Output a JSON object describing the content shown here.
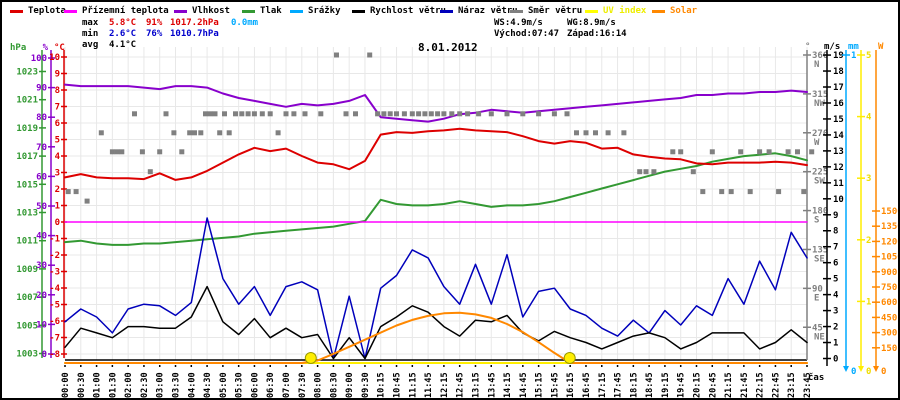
{
  "legend": [
    {
      "label": "Teplota",
      "color": "#dd0000"
    },
    {
      "label": "Přízemní teplota",
      "color": "#ff00ff"
    },
    {
      "label": "Vlhkost",
      "color": "#8800cc"
    },
    {
      "label": "Tlak",
      "color": "#339933"
    },
    {
      "label": "Srážky",
      "color": "#00aaff"
    },
    {
      "label": "Rychlost větru",
      "color": "#000000"
    },
    {
      "label": "Náraz větru",
      "color": "#0000bb"
    },
    {
      "label": "Směr větru",
      "color": "#808080"
    },
    {
      "label": "UV index",
      "color": "#ffff00"
    },
    {
      "label": "Solar",
      "color": "#ff8800"
    }
  ],
  "stats": {
    "max_label": "max",
    "max_temp": "5.8°C",
    "max_hum": "91%",
    "max_pres": "1017.2hPa",
    "max_rain": "0.0mm",
    "min_label": "min",
    "min_temp": "2.6°C",
    "min_hum": "76%",
    "min_pres": "1010.7hPa",
    "avg_label": "avg",
    "avg_temp": "4.1°C",
    "ws": "WS:4.9m/s",
    "wg": "WG:8.9m/s",
    "sunrise": "Východ:07:47",
    "sunset": "Západ:16:14"
  },
  "title": "8.01.2012",
  "xlabel": "čas",
  "chart_data": {
    "type": "line",
    "title": "8.01.2012",
    "x_labels": [
      "00:00",
      "00:30",
      "01:00",
      "01:30",
      "02:00",
      "02:30",
      "03:00",
      "03:30",
      "04:00",
      "04:30",
      "05:00",
      "05:30",
      "06:00",
      "06:30",
      "07:00",
      "07:30",
      "08:00",
      "08:30",
      "09:00",
      "09:30",
      "10:15",
      "10:45",
      "11:15",
      "11:45",
      "12:15",
      "12:45",
      "13:15",
      "13:45",
      "14:15",
      "14:45",
      "15:15",
      "15:45",
      "16:15",
      "16:45",
      "17:15",
      "17:45",
      "18:15",
      "18:45",
      "19:15",
      "19:45",
      "20:15",
      "20:45",
      "21:15",
      "21:45",
      "22:15",
      "22:45",
      "23:15",
      "23:45"
    ],
    "y_axes_left": [
      {
        "name": "hPa",
        "color": "#339933",
        "range": [
          1003,
          1023
        ],
        "ticks": [
          1023,
          1021,
          1019,
          1017,
          1015,
          1013,
          1011,
          1009,
          1007,
          1005,
          1003
        ]
      },
      {
        "name": "%",
        "color": "#8800cc",
        "range": [
          0,
          100
        ],
        "ticks": [
          100,
          90,
          80,
          70,
          60,
          50,
          40,
          30,
          20,
          10,
          0
        ]
      },
      {
        "name": "°C",
        "color": "#dd0000",
        "range": [
          -8,
          10
        ],
        "ticks": [
          10,
          9,
          8,
          7,
          6,
          5,
          4,
          3,
          2,
          1,
          0,
          -1,
          -2,
          -3,
          -4,
          -5,
          -6,
          -7,
          -8
        ]
      }
    ],
    "y_axes_right": [
      {
        "name": "°",
        "color": "#808080",
        "range": [
          45,
          360
        ],
        "ticks": [
          360,
          315,
          270,
          225,
          180,
          135,
          90,
          45
        ],
        "tick_letters": [
          "N",
          "NW",
          "W",
          "SW",
          "S",
          "SE",
          "E",
          "NE"
        ]
      },
      {
        "name": "m/s",
        "color": "#000000",
        "range": [
          0,
          19
        ],
        "ticks": [
          19,
          18,
          17,
          16,
          15,
          14,
          13,
          12,
          11,
          10,
          9,
          8,
          7,
          6,
          5,
          4,
          3,
          2,
          1,
          0
        ]
      },
      {
        "name": "mm",
        "color": "#00aaff",
        "range": [
          0,
          1
        ],
        "ticks": [
          1,
          0
        ]
      },
      {
        "name": "UV",
        "color": "#ffee00",
        "range": [
          0,
          5
        ],
        "ticks": [
          5,
          4,
          3,
          2,
          1,
          0
        ]
      },
      {
        "name": "W",
        "color": "#ff8800",
        "range": [
          0,
          1500
        ],
        "ticks": [
          1500,
          1350,
          1200,
          1050,
          900,
          750,
          600,
          450,
          300,
          150,
          0
        ]
      }
    ],
    "series": [
      {
        "name": "Teplota",
        "color": "#dd0000",
        "axis": "temp",
        "width": 2,
        "values": [
          2.7,
          2.9,
          2.7,
          2.65,
          2.65,
          2.6,
          2.95,
          2.55,
          2.7,
          3.1,
          3.6,
          4.1,
          4.5,
          4.3,
          4.45,
          4.0,
          3.6,
          3.5,
          3.2,
          3.7,
          5.3,
          5.45,
          5.4,
          5.5,
          5.55,
          5.65,
          5.55,
          5.5,
          5.45,
          5.2,
          4.9,
          4.75,
          4.9,
          4.8,
          4.45,
          4.5,
          4.1,
          3.95,
          3.85,
          3.8,
          3.55,
          3.5,
          3.6,
          3.6,
          3.6,
          3.65,
          3.6,
          3.45
        ]
      },
      {
        "name": "Přízemní teplota",
        "color": "#ff00ff",
        "axis": "temp",
        "width": 1.5,
        "values": [
          0,
          0,
          0,
          0,
          0,
          0,
          0,
          0,
          0,
          0,
          0,
          0,
          0,
          0,
          0,
          0,
          0,
          0,
          0,
          0,
          0,
          0,
          0,
          0,
          0,
          0,
          0,
          0,
          0,
          0,
          0,
          0,
          0,
          0,
          0,
          0,
          0,
          0,
          0,
          0,
          0,
          0,
          0,
          0,
          0,
          0,
          0,
          0
        ]
      },
      {
        "name": "Vlhkost",
        "color": "#8800cc",
        "axis": "hum",
        "width": 2,
        "values": [
          91,
          90.5,
          90.5,
          90.5,
          90.5,
          90,
          89.5,
          90.5,
          90.5,
          90,
          88,
          86.5,
          85.5,
          84.5,
          83.5,
          84.5,
          84,
          84.5,
          85.5,
          87.5,
          80,
          79.5,
          79,
          78.5,
          79.5,
          81,
          81.5,
          82.5,
          82,
          81.5,
          82,
          82.5,
          83,
          83.5,
          84,
          84.5,
          85,
          85.5,
          86,
          86.5,
          87.5,
          87.5,
          88,
          88,
          88.5,
          88.5,
          89,
          88.5
        ]
      },
      {
        "name": "Tlak",
        "color": "#339933",
        "axis": "pres",
        "width": 2,
        "values": [
          1010.9,
          1011.0,
          1010.8,
          1010.7,
          1010.7,
          1010.8,
          1010.8,
          1010.9,
          1011.0,
          1011.1,
          1011.2,
          1011.3,
          1011.5,
          1011.6,
          1011.7,
          1011.8,
          1011.9,
          1012.0,
          1012.2,
          1012.4,
          1013.9,
          1013.6,
          1013.5,
          1013.5,
          1013.6,
          1013.8,
          1013.6,
          1013.4,
          1013.5,
          1013.5,
          1013.6,
          1013.8,
          1014.1,
          1014.4,
          1014.7,
          1015.0,
          1015.3,
          1015.6,
          1015.9,
          1016.1,
          1016.3,
          1016.6,
          1016.8,
          1017.0,
          1017.1,
          1017.2,
          1017.0,
          1016.7
        ]
      },
      {
        "name": "Srážky",
        "color": "#00aaff",
        "axis": "mm",
        "width": 1.5,
        "values": [
          0,
          0,
          0,
          0,
          0,
          0,
          0,
          0,
          0,
          0,
          0,
          0,
          0,
          0,
          0,
          0,
          0,
          0,
          0,
          0,
          0,
          0,
          0,
          0,
          0,
          0,
          0,
          0,
          0,
          0,
          0,
          0,
          0,
          0,
          0,
          0,
          0,
          0,
          0,
          0,
          0,
          0,
          0,
          0,
          0,
          0,
          0,
          0
        ]
      },
      {
        "name": "Rychlost větru",
        "color": "#000000",
        "axis": "wind",
        "width": 1.5,
        "values": [
          0.7,
          1.9,
          1.6,
          1.3,
          2.0,
          2.0,
          1.9,
          1.9,
          2.6,
          4.5,
          2.3,
          1.5,
          2.5,
          1.3,
          1.9,
          1.3,
          1.5,
          0.0,
          1.3,
          0.0,
          2.0,
          2.6,
          3.3,
          2.9,
          2.0,
          1.4,
          2.4,
          2.3,
          2.7,
          1.6,
          1.1,
          1.7,
          1.3,
          1.0,
          0.6,
          1.0,
          1.4,
          1.6,
          1.3,
          0.6,
          1.0,
          1.6,
          1.6,
          1.6,
          0.6,
          1.0,
          1.8,
          1.0
        ]
      },
      {
        "name": "Náraz větru",
        "color": "#0000bb",
        "axis": "wind",
        "width": 1.5,
        "values": [
          2.3,
          3.1,
          2.6,
          1.6,
          3.1,
          3.4,
          3.3,
          2.7,
          3.5,
          8.8,
          5.0,
          3.4,
          4.5,
          2.7,
          4.5,
          4.8,
          4.3,
          0.0,
          3.9,
          0.0,
          4.4,
          5.2,
          6.8,
          6.3,
          4.5,
          3.4,
          5.9,
          3.4,
          6.5,
          2.6,
          4.2,
          4.4,
          3.1,
          2.7,
          1.9,
          1.4,
          2.4,
          1.6,
          3.0,
          2.1,
          3.3,
          2.7,
          5.0,
          3.4,
          6.1,
          4.3,
          7.9,
          6.3
        ]
      },
      {
        "name": "UV index",
        "color": "#ffee00",
        "axis": "uv",
        "width": 2,
        "values": [
          0,
          0,
          0,
          0,
          0,
          0,
          0,
          0,
          0,
          0,
          0,
          0,
          0,
          0,
          0,
          0,
          0,
          0,
          0,
          0,
          0,
          0,
          0,
          0,
          0,
          0,
          0,
          0,
          0,
          0,
          0,
          0,
          0,
          0,
          0,
          0,
          0,
          0,
          0,
          0,
          0,
          0,
          0,
          0,
          0,
          0,
          0,
          0
        ]
      },
      {
        "name": "Solar",
        "color": "#ff8800",
        "axis": "solar",
        "width": 2,
        "values": [
          0,
          0,
          0,
          0,
          0,
          0,
          0,
          0,
          0,
          0,
          0,
          0,
          0,
          0,
          0,
          0,
          25,
          90,
          160,
          230,
          300,
          370,
          425,
          465,
          490,
          495,
          480,
          445,
          385,
          305,
          205,
          100,
          0,
          0,
          0,
          0,
          0,
          0,
          0,
          0,
          0,
          0,
          0,
          0,
          0,
          0,
          0,
          0
        ]
      }
    ],
    "wind_direction_points": {
      "name": "Směr větru",
      "color": "#808080",
      "points": [
        [
          0.2,
          202
        ],
        [
          0.7,
          202
        ],
        [
          1.4,
          191
        ],
        [
          2.3,
          270
        ],
        [
          3.0,
          248
        ],
        [
          3.3,
          248
        ],
        [
          3.6,
          248
        ],
        [
          4.4,
          292
        ],
        [
          4.9,
          248
        ],
        [
          5.4,
          225
        ],
        [
          6.0,
          248
        ],
        [
          6.4,
          292
        ],
        [
          6.9,
          270
        ],
        [
          7.4,
          248
        ],
        [
          7.9,
          270
        ],
        [
          8.2,
          270
        ],
        [
          8.6,
          270
        ],
        [
          8.9,
          292
        ],
        [
          9.2,
          292
        ],
        [
          9.5,
          292
        ],
        [
          9.8,
          270
        ],
        [
          10.1,
          292
        ],
        [
          10.4,
          270
        ],
        [
          10.8,
          292
        ],
        [
          11.2,
          292
        ],
        [
          11.6,
          292
        ],
        [
          12.0,
          292
        ],
        [
          12.5,
          292
        ],
        [
          13.0,
          292
        ],
        [
          13.5,
          270
        ],
        [
          14.0,
          292
        ],
        [
          14.5,
          292
        ],
        [
          15.2,
          292
        ],
        [
          16.2,
          292
        ],
        [
          17.2,
          360
        ],
        [
          17.8,
          292
        ],
        [
          18.4,
          292
        ],
        [
          19.3,
          360
        ],
        [
          19.8,
          292
        ],
        [
          20.2,
          292
        ],
        [
          20.6,
          292
        ],
        [
          21.0,
          292
        ],
        [
          21.5,
          292
        ],
        [
          22.0,
          292
        ],
        [
          22.4,
          292
        ],
        [
          22.8,
          292
        ],
        [
          23.2,
          292
        ],
        [
          23.6,
          292
        ],
        [
          24.0,
          292
        ],
        [
          24.5,
          292
        ],
        [
          25.0,
          292
        ],
        [
          25.5,
          292
        ],
        [
          26.2,
          292
        ],
        [
          27.0,
          292
        ],
        [
          28.0,
          292
        ],
        [
          29.0,
          292
        ],
        [
          30.0,
          292
        ],
        [
          31.0,
          292
        ],
        [
          31.8,
          292
        ],
        [
          32.4,
          270
        ],
        [
          33.0,
          270
        ],
        [
          33.6,
          270
        ],
        [
          34.4,
          270
        ],
        [
          35.4,
          270
        ],
        [
          36.4,
          225
        ],
        [
          36.8,
          225
        ],
        [
          37.3,
          225
        ],
        [
          38.5,
          248
        ],
        [
          39.0,
          248
        ],
        [
          39.8,
          225
        ],
        [
          40.4,
          202
        ],
        [
          41.0,
          248
        ],
        [
          41.6,
          202
        ],
        [
          42.2,
          202
        ],
        [
          42.8,
          248
        ],
        [
          43.4,
          202
        ],
        [
          44.0,
          248
        ],
        [
          44.6,
          248
        ],
        [
          45.2,
          202
        ],
        [
          45.8,
          248
        ],
        [
          46.4,
          248
        ],
        [
          46.8,
          202
        ],
        [
          47.3,
          248
        ]
      ]
    },
    "sun_markers": {
      "color": "#ffee00",
      "indices": [
        15.57,
        31.97
      ]
    },
    "grid": true,
    "legend_position": "top"
  }
}
